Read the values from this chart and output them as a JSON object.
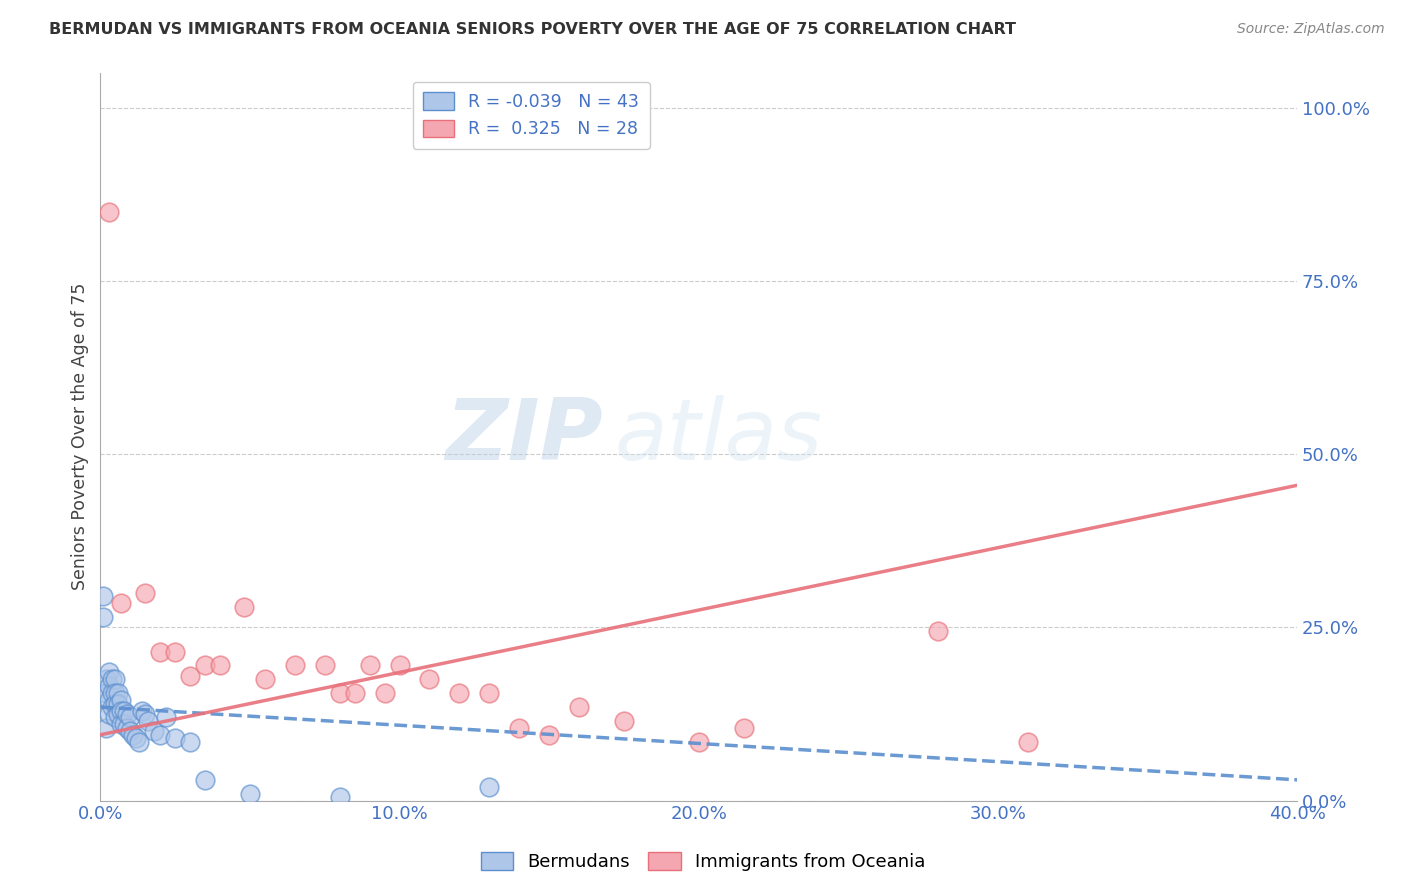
{
  "title": "BERMUDAN VS IMMIGRANTS FROM OCEANIA SENIORS POVERTY OVER THE AGE OF 75 CORRELATION CHART",
  "source": "Source: ZipAtlas.com",
  "ylabel": "Seniors Poverty Over the Age of 75",
  "xlabel": "",
  "xlim": [
    0.0,
    0.4
  ],
  "ylim": [
    0.0,
    1.05
  ],
  "xticks": [
    0.0,
    0.1,
    0.2,
    0.3,
    0.4
  ],
  "xtick_labels": [
    "0.0%",
    "10.0%",
    "20.0%",
    "30.0%",
    "40.0%"
  ],
  "yticks_right": [
    0.0,
    0.25,
    0.5,
    0.75,
    1.0
  ],
  "ytick_labels_right": [
    "0.0%",
    "25.0%",
    "50.0%",
    "75.0%",
    "100.0%"
  ],
  "blue_R": -0.039,
  "blue_N": 43,
  "pink_R": 0.325,
  "pink_N": 28,
  "blue_color": "#aec6e8",
  "pink_color": "#f4a7b0",
  "blue_line_color": "#5b8fcf",
  "pink_line_color": "#e8707a",
  "watermark": "ZIPatlas",
  "legend_label_blue": "Bermudans",
  "legend_label_pink": "Immigrants from Oceania",
  "blue_scatter_x": [
    0.001,
    0.001,
    0.002,
    0.002,
    0.002,
    0.003,
    0.003,
    0.003,
    0.003,
    0.004,
    0.004,
    0.004,
    0.005,
    0.005,
    0.005,
    0.005,
    0.006,
    0.006,
    0.006,
    0.007,
    0.007,
    0.007,
    0.008,
    0.008,
    0.009,
    0.009,
    0.01,
    0.01,
    0.011,
    0.012,
    0.013,
    0.014,
    0.015,
    0.016,
    0.018,
    0.02,
    0.022,
    0.025,
    0.03,
    0.035,
    0.05,
    0.08,
    0.13
  ],
  "blue_scatter_y": [
    0.295,
    0.265,
    0.175,
    0.155,
    0.105,
    0.185,
    0.165,
    0.145,
    0.125,
    0.175,
    0.155,
    0.135,
    0.175,
    0.155,
    0.14,
    0.12,
    0.155,
    0.14,
    0.125,
    0.145,
    0.13,
    0.11,
    0.13,
    0.11,
    0.125,
    0.105,
    0.12,
    0.1,
    0.095,
    0.09,
    0.085,
    0.13,
    0.125,
    0.115,
    0.1,
    0.095,
    0.12,
    0.09,
    0.085,
    0.03,
    0.01,
    0.005,
    0.02
  ],
  "pink_scatter_x": [
    0.003,
    0.007,
    0.015,
    0.02,
    0.025,
    0.03,
    0.035,
    0.04,
    0.048,
    0.055,
    0.065,
    0.075,
    0.08,
    0.085,
    0.09,
    0.095,
    0.1,
    0.11,
    0.12,
    0.13,
    0.14,
    0.15,
    0.16,
    0.175,
    0.2,
    0.215,
    0.28,
    0.31
  ],
  "pink_scatter_y": [
    0.85,
    0.285,
    0.3,
    0.215,
    0.215,
    0.18,
    0.195,
    0.195,
    0.28,
    0.175,
    0.195,
    0.195,
    0.155,
    0.155,
    0.195,
    0.155,
    0.195,
    0.175,
    0.155,
    0.155,
    0.105,
    0.095,
    0.135,
    0.115,
    0.085,
    0.105,
    0.245,
    0.085
  ],
  "pink_trend_x0": 0.0,
  "pink_trend_y0": 0.095,
  "pink_trend_x1": 0.4,
  "pink_trend_y1": 0.455,
  "blue_trend_x0": 0.0,
  "blue_trend_y0": 0.135,
  "blue_trend_x1": 0.4,
  "blue_trend_y1": 0.03
}
